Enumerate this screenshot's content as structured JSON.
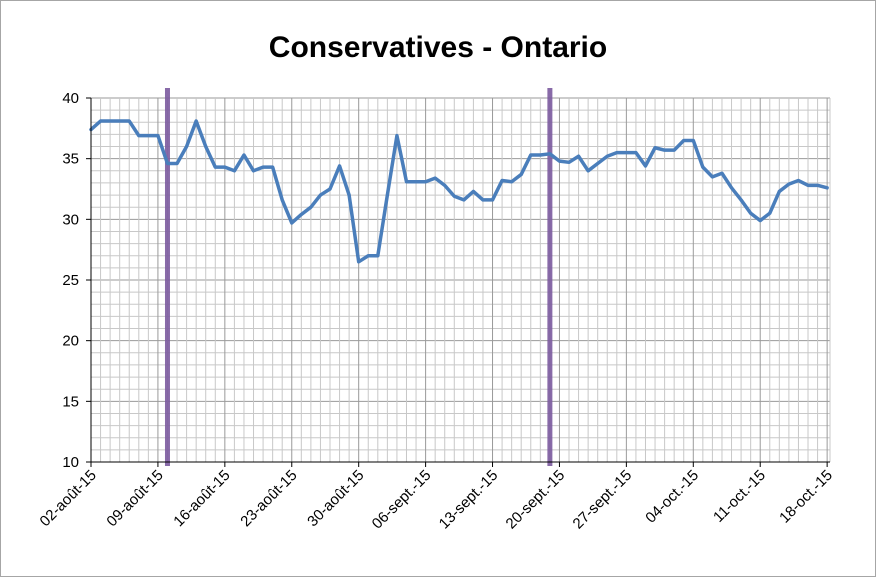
{
  "chart_data": {
    "type": "line",
    "title": "Conservatives - Ontario",
    "xlabel": "",
    "ylabel": "",
    "ylim": [
      10,
      40
    ],
    "yticks": [
      "10",
      "15",
      "20",
      "25",
      "30",
      "35",
      "40"
    ],
    "x_tick_labels": [
      "02-août-15",
      "09-août-15",
      "16-août-15",
      "23-août-15",
      "30-août-15",
      "06-sept.-15",
      "13-sept.-15",
      "20-sept.-15",
      "27-sept.-15",
      "04-oct.-15",
      "11-oct.-15",
      "18-oct.-15"
    ],
    "x_start": "2015-08-02",
    "x_end": "2015-10-18",
    "grid": true,
    "legend": "none",
    "series": [
      {
        "color": "#4a7ebb",
        "x": [
          "2015-08-02",
          "2015-08-03",
          "2015-08-04",
          "2015-08-05",
          "2015-08-06",
          "2015-08-07",
          "2015-08-08",
          "2015-08-09",
          "2015-08-10",
          "2015-08-11",
          "2015-08-12",
          "2015-08-13",
          "2015-08-14",
          "2015-08-15",
          "2015-08-16",
          "2015-08-17",
          "2015-08-18",
          "2015-08-19",
          "2015-08-20",
          "2015-08-21",
          "2015-08-22",
          "2015-08-23",
          "2015-08-24",
          "2015-08-25",
          "2015-08-26",
          "2015-08-27",
          "2015-08-28",
          "2015-08-29",
          "2015-08-30",
          "2015-08-31",
          "2015-09-01",
          "2015-09-02",
          "2015-09-03",
          "2015-09-04",
          "2015-09-05",
          "2015-09-06",
          "2015-09-07",
          "2015-09-08",
          "2015-09-09",
          "2015-09-10",
          "2015-09-11",
          "2015-09-12",
          "2015-09-13",
          "2015-09-14",
          "2015-09-15",
          "2015-09-16",
          "2015-09-17",
          "2015-09-18",
          "2015-09-19",
          "2015-09-20",
          "2015-09-21",
          "2015-09-22",
          "2015-09-23",
          "2015-09-24",
          "2015-09-25",
          "2015-09-26",
          "2015-09-27",
          "2015-09-28",
          "2015-09-29",
          "2015-09-30",
          "2015-10-01",
          "2015-10-02",
          "2015-10-03",
          "2015-10-04",
          "2015-10-05",
          "2015-10-06",
          "2015-10-07",
          "2015-10-08",
          "2015-10-09",
          "2015-10-10",
          "2015-10-11",
          "2015-10-12",
          "2015-10-13",
          "2015-10-14",
          "2015-10-15",
          "2015-10-16",
          "2015-10-17",
          "2015-10-18"
        ],
        "y": [
          37.4,
          38.1,
          38.1,
          38.1,
          38.1,
          36.9,
          36.9,
          36.9,
          34.6,
          34.6,
          36.0,
          38.1,
          36.0,
          34.3,
          34.3,
          34.0,
          35.3,
          34.0,
          34.3,
          34.3,
          31.6,
          29.7,
          30.4,
          31.0,
          32.0,
          32.5,
          34.4,
          32.0,
          26.5,
          27.0,
          27.0,
          32.0,
          36.9,
          33.1,
          33.1,
          33.1,
          33.4,
          32.8,
          31.9,
          31.6,
          32.3,
          31.6,
          31.6,
          33.2,
          33.1,
          33.7,
          35.3,
          35.3,
          35.4,
          34.8,
          34.7,
          35.2,
          34.0,
          34.6,
          35.2,
          35.5,
          35.5,
          35.5,
          34.4,
          35.9,
          35.7,
          35.7,
          36.5,
          36.5,
          34.3,
          33.5,
          33.8,
          32.6,
          31.6,
          30.5,
          29.9,
          30.5,
          32.3,
          32.9,
          33.2,
          32.8,
          32.8,
          32.6
        ]
      }
    ],
    "vertical_markers": [
      {
        "x": "2015-08-10",
        "color": "#7b5a9e"
      },
      {
        "x": "2015-09-19",
        "color": "#7b5a9e"
      }
    ]
  }
}
